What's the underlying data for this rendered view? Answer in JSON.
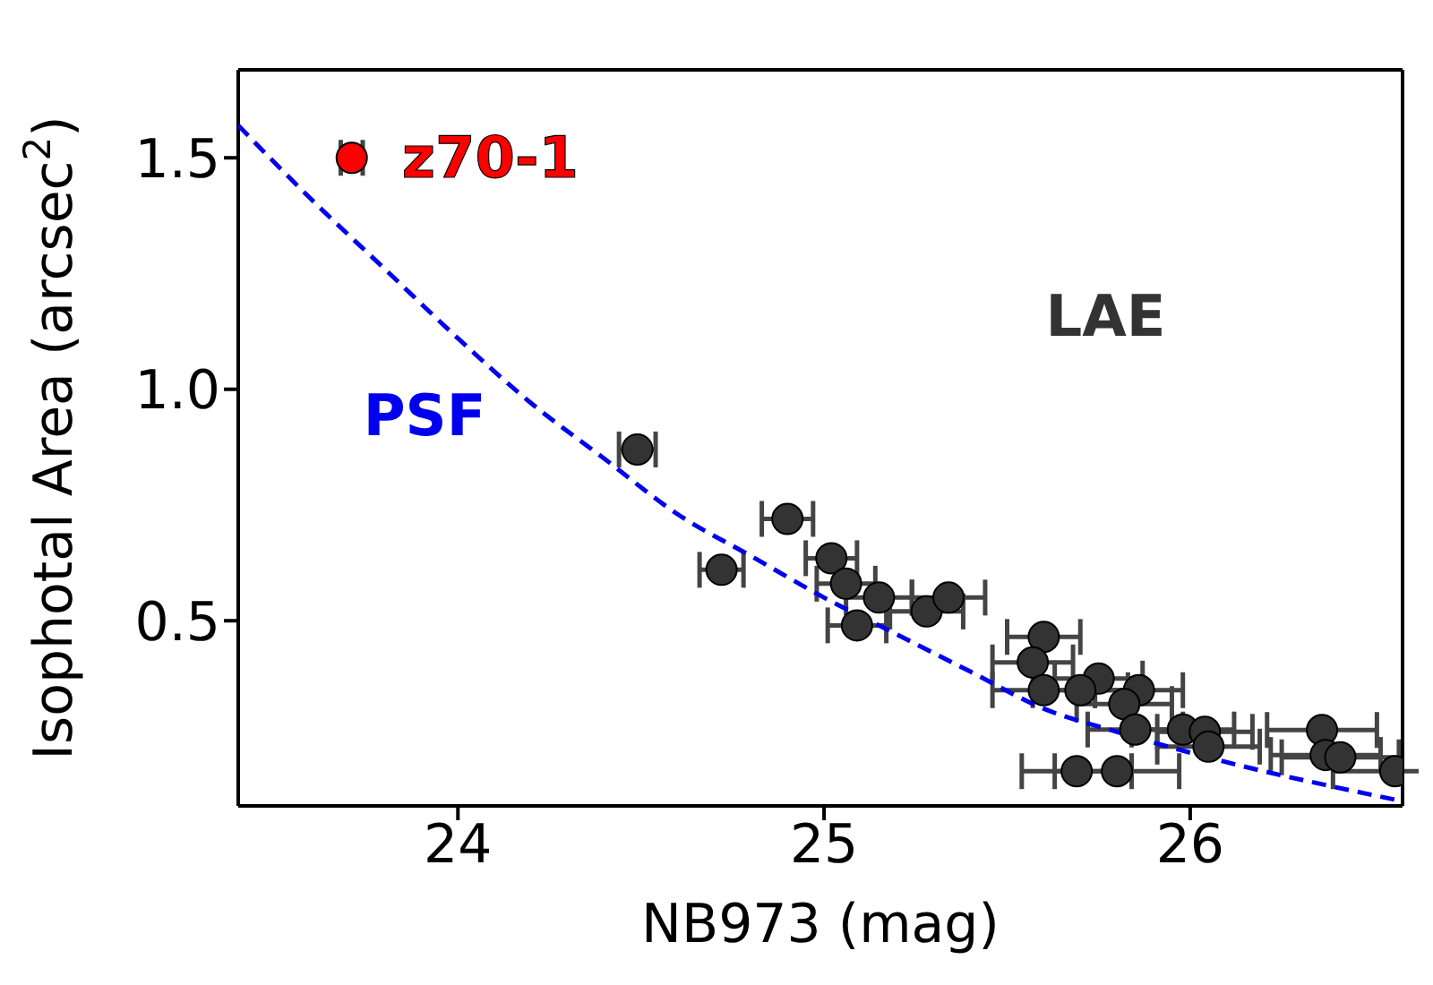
{
  "chart_data": {
    "type": "scatter",
    "xlabel": "NB973 (mag)",
    "ylabel": "Isophotal Area (arcsec$^{2}$)",
    "xlim": [
      23.4,
      26.58
    ],
    "ylim": [
      0.1,
      1.69
    ],
    "xticks": [
      24,
      25,
      26
    ],
    "yticks": [
      {
        "value": 0.5,
        "label": "0.5"
      },
      {
        "value": 1,
        "label": "1.0"
      },
      {
        "value": 1.5,
        "label": "1.5"
      }
    ],
    "series": [
      {
        "name": "PSF",
        "type": "line",
        "color": "#0000ee",
        "line_style": "dashed",
        "marker": "none",
        "x": [
          23.4,
          23.6,
          23.8,
          24.0,
          24.2,
          24.4,
          24.6,
          24.8,
          25.0,
          25.2,
          25.4,
          25.6,
          25.8,
          26.0,
          26.2,
          26.4,
          26.58
        ],
        "values": [
          1.57,
          1.41,
          1.26,
          1.11,
          0.97,
          0.85,
          0.73,
          0.64,
          0.55,
          0.47,
          0.39,
          0.31,
          0.26,
          0.215,
          0.175,
          0.14,
          0.11
        ]
      },
      {
        "name": "z70-1",
        "type": "scatter",
        "color": "#ff0000",
        "marker": "circle",
        "x": [
          23.71
        ],
        "values": [
          1.5
        ],
        "xerrors": [
          0.03
        ]
      },
      {
        "name": "LAE",
        "type": "scatter",
        "color": "#333333",
        "marker": "circle",
        "x": [
          24.49,
          24.72,
          24.9,
          25.02,
          25.06,
          25.09,
          25.15,
          25.28,
          25.34,
          25.6,
          25.57,
          25.6,
          25.75,
          25.7,
          25.86,
          25.82,
          25.85,
          25.98,
          26.04,
          26.05,
          26.36,
          26.37,
          26.41,
          26.56,
          25.69,
          25.8
        ],
        "values": [
          0.87,
          0.61,
          0.72,
          0.635,
          0.58,
          0.49,
          0.55,
          0.52,
          0.55,
          0.465,
          0.41,
          0.35,
          0.375,
          0.35,
          0.35,
          0.32,
          0.265,
          0.265,
          0.26,
          0.228,
          0.264,
          0.21,
          0.205,
          0.175,
          0.175,
          0.175
        ],
        "xerrors": [
          0.05,
          0.06,
          0.07,
          0.07,
          0.08,
          0.08,
          0.09,
          0.1,
          0.1,
          0.1,
          0.11,
          0.14,
          0.12,
          0.13,
          0.12,
          0.13,
          0.13,
          0.14,
          0.13,
          0.14,
          0.15,
          0.15,
          0.16,
          0.17,
          0.15,
          0.17
        ]
      }
    ]
  }
}
